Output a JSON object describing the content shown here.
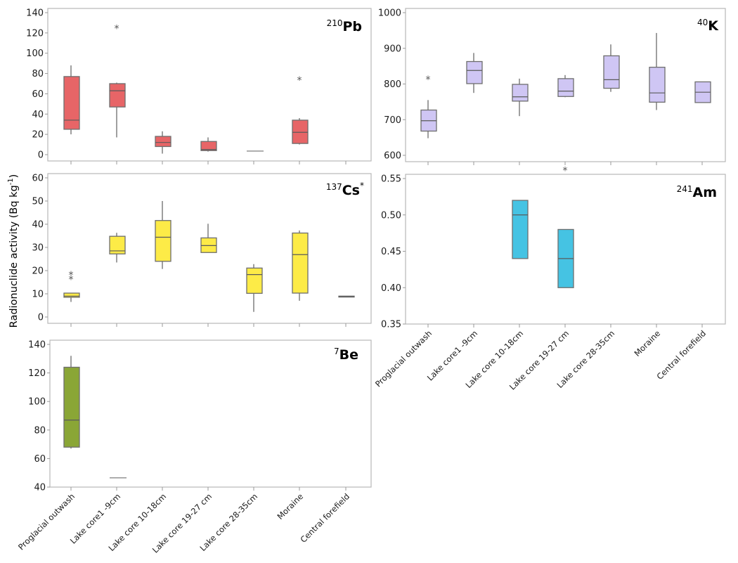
{
  "figure": {
    "ylabel": "Radionuclide activity (Bq kg",
    "ylabel_sup": "-1",
    "ylabel_close": ")"
  },
  "chart_data": [
    {
      "type": "box",
      "id": "pb",
      "title_sup": "210",
      "title_main": "Pb",
      "title_suffix": "",
      "color": "#e76567",
      "ylim": [
        -5,
        145
      ],
      "yticks": [
        0,
        20,
        40,
        60,
        80,
        100,
        120,
        140
      ],
      "ytick_labels": [
        "0",
        "20",
        "40",
        "60",
        "80",
        "100",
        "120",
        "140"
      ],
      "show_xlabels": false,
      "categories": [
        "Proglacial outwash",
        "Lake core1 -9cm",
        "Lake core 10-18cm",
        "Lake core 19-27 cm",
        "Lake core 28-35cm",
        "Moraine",
        "Central forefield"
      ],
      "boxes": [
        {
          "q1": 25,
          "median": 34,
          "q3": 77,
          "whisker_low": 20,
          "whisker_high": 88,
          "outliers": []
        },
        {
          "q1": 47,
          "median": 63,
          "q3": 70,
          "whisker_low": 17,
          "whisker_high": 71,
          "outliers": [
            125
          ]
        },
        {
          "q1": 8,
          "median": 12,
          "q3": 18,
          "whisker_low": 1,
          "whisker_high": 23,
          "outliers": []
        },
        {
          "q1": 4,
          "median": 5,
          "q3": 13,
          "whisker_low": 3,
          "whisker_high": 17,
          "outliers": []
        },
        {
          "q1": 3.5,
          "median": 3.5,
          "q3": 3.5,
          "whisker_low": 3.5,
          "whisker_high": 3.5,
          "outliers": []
        },
        {
          "q1": 11,
          "median": 22,
          "q3": 34,
          "whisker_low": 10,
          "whisker_high": 36,
          "outliers": [
            74
          ]
        },
        null
      ]
    },
    {
      "type": "box",
      "id": "k",
      "title_sup": "40",
      "title_main": "K",
      "title_suffix": "",
      "color": "#cfc6f4",
      "ylim": [
        540,
        1010
      ],
      "yticks": [
        600,
        700,
        800,
        900,
        1000
      ],
      "ytick_labels": [
        "600",
        "700",
        "800",
        "900",
        "1000"
      ],
      "show_xlabels": false,
      "categories": [
        "Proglacial outwash",
        "Lake core1 -9cm",
        "Lake core 10-18cm",
        "Lake core 19-27 cm",
        "Lake core 28-35cm",
        "Moraine",
        "Central forefield"
      ],
      "boxes": [
        {
          "q1": 668,
          "median": 697,
          "q3": 727,
          "whisker_low": 648,
          "whisker_high": 755,
          "outliers": [
            815
          ]
        },
        {
          "q1": 801,
          "median": 838,
          "q3": 863,
          "whisker_low": 775,
          "whisker_high": 887,
          "outliers": []
        },
        {
          "q1": 752,
          "median": 764,
          "q3": 799,
          "whisker_low": 710,
          "whisker_high": 815,
          "outliers": []
        },
        {
          "q1": 765,
          "median": 780,
          "q3": 815,
          "whisker_low": 763,
          "whisker_high": 825,
          "outliers": [
            560
          ]
        },
        {
          "q1": 788,
          "median": 812,
          "q3": 879,
          "whisker_low": 778,
          "whisker_high": 911,
          "outliers": []
        },
        {
          "q1": 749,
          "median": 775,
          "q3": 847,
          "whisker_low": 727,
          "whisker_high": 943,
          "outliers": []
        },
        {
          "q1": 748,
          "median": 777,
          "q3": 806,
          "whisker_low": 748,
          "whisker_high": 806,
          "outliers": []
        }
      ]
    },
    {
      "type": "box",
      "id": "cs",
      "title_sup": "137",
      "title_main": "Cs",
      "title_suffix": "*",
      "color": "#fdeb47",
      "ylim": [
        -1,
        60
      ],
      "yticks": [
        0,
        10,
        20,
        30,
        40,
        50,
        60
      ],
      "ytick_labels": [
        "0",
        "10",
        "20",
        "30",
        "40",
        "50",
        "60"
      ],
      "show_xlabels": false,
      "categories": [
        "Proglacial outwash",
        "Lake core1 -9cm",
        "Lake core 10-18cm",
        "Lake core 19-27 cm",
        "Lake core 28-35cm",
        "Moraine",
        "Central forefield"
      ],
      "boxes": [
        {
          "q1": 8.5,
          "median": 9,
          "q3": 10.3,
          "whisker_low": 6.5,
          "whisker_high": 10.3,
          "outliers": [
            16.5,
            18.5
          ]
        },
        {
          "q1": 27.2,
          "median": 28.5,
          "q3": 34.8,
          "whisker_low": 23.5,
          "whisker_high": 36.3,
          "outliers": []
        },
        {
          "q1": 24,
          "median": 34.4,
          "q3": 41.6,
          "whisker_low": 20.7,
          "whisker_high": 50,
          "outliers": []
        },
        {
          "q1": 27.8,
          "median": 30.8,
          "q3": 34.1,
          "whisker_low": 27.8,
          "whisker_high": 40.2,
          "outliers": []
        },
        {
          "q1": 10.2,
          "median": 18.3,
          "q3": 21.1,
          "whisker_low": 2.2,
          "whisker_high": 22.8,
          "outliers": []
        },
        {
          "q1": 10.3,
          "median": 26.9,
          "q3": 36.2,
          "whisker_low": 7,
          "whisker_high": 37.3,
          "outliers": []
        },
        {
          "q1": 8.6,
          "median": 8.8,
          "q3": 9.0,
          "whisker_low": 8.6,
          "whisker_high": 9.0,
          "outliers": []
        }
      ]
    },
    {
      "type": "box",
      "id": "am",
      "title_sup": "241",
      "title_main": "Am",
      "title_suffix": "",
      "color": "#45c3e3",
      "ylim": [
        0.35,
        0.55
      ],
      "yticks": [
        0.35,
        0.4,
        0.45,
        0.5,
        0.55
      ],
      "ytick_labels": [
        "0.35",
        "0.40",
        "0.45",
        "0.50",
        "0.55"
      ],
      "show_xlabels": true,
      "categories": [
        "Proglacial outwash",
        "Lake core1 -9cm",
        "Lake core 10-18cm",
        "Lake core 19-27 cm",
        "Lake core 28-35cm",
        "Moraine",
        "Central forefield"
      ],
      "boxes": [
        null,
        null,
        {
          "q1": 0.44,
          "median": 0.5,
          "q3": 0.52,
          "whisker_low": 0.44,
          "whisker_high": 0.52,
          "outliers": []
        },
        {
          "q1": 0.4,
          "median": 0.44,
          "q3": 0.48,
          "whisker_low": 0.4,
          "whisker_high": 0.48,
          "outliers": []
        },
        null,
        null,
        null
      ]
    },
    {
      "type": "box",
      "id": "be",
      "title_sup": "7",
      "title_main": "Be",
      "title_suffix": "",
      "color": "#8aa636",
      "ylim": [
        40,
        140
      ],
      "yticks": [
        40,
        60,
        80,
        100,
        120,
        140
      ],
      "ytick_labels": [
        "40",
        "60",
        "80",
        "100",
        "120",
        "140"
      ],
      "show_xlabels": true,
      "categories": [
        "Proglacial outwash",
        "Lake core1 -9cm",
        "Lake core 10-18cm",
        "Lake core 19-27 cm",
        "Lake core 28-35cm",
        "Moraine",
        "Central forefield"
      ],
      "boxes": [
        {
          "q1": 68,
          "median": 87,
          "q3": 124,
          "whisker_low": 67,
          "whisker_high": 132,
          "outliers": []
        },
        {
          "q1": 46.5,
          "median": 46.5,
          "q3": 46.5,
          "whisker_low": 46.5,
          "whisker_high": 46.5,
          "outliers": []
        },
        null,
        null,
        null,
        null,
        null
      ]
    }
  ]
}
